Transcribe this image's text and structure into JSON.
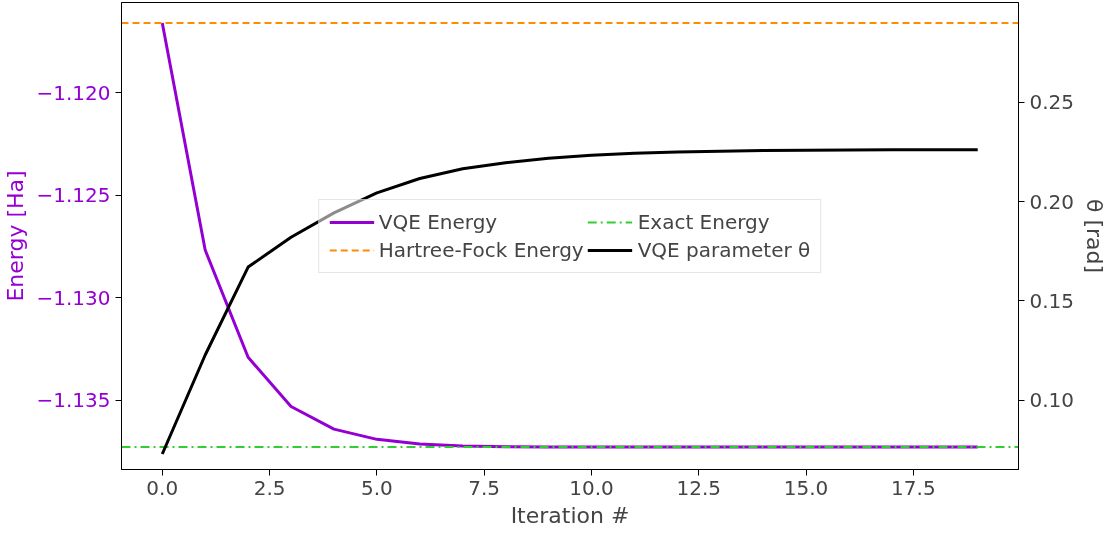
{
  "chart_data": {
    "type": "line",
    "xlabel": "Iteration #",
    "ylabel": "Energy [Ha]",
    "y2label": "θ [rad]",
    "x": [
      0,
      1,
      2,
      3,
      4,
      5,
      6,
      7,
      8,
      9,
      10,
      11,
      12,
      13,
      14,
      15,
      16,
      17,
      18,
      19
    ],
    "series": [
      {
        "name": "VQE Energy",
        "color": "#9400d3",
        "values": [
          -1.1166,
          -1.12767,
          -1.1329,
          -1.1353,
          -1.1364,
          -1.1369,
          -1.13713,
          -1.13722,
          -1.13726,
          -1.13727,
          -1.13727,
          -1.13727,
          -1.13727,
          -1.13727,
          -1.13727,
          -1.13727,
          -1.13727,
          -1.13727,
          -1.13727,
          -1.13727
        ]
      },
      {
        "name": "VQE parameter θ",
        "color": "#000000",
        "axis": "y2",
        "values": [
          0.0728,
          0.1227,
          0.167,
          0.182,
          0.1943,
          0.2044,
          0.2116,
          0.2165,
          0.2196,
          0.2218,
          0.2233,
          0.2243,
          0.225,
          0.2254,
          0.2257,
          0.2259,
          0.226,
          0.2261,
          0.2261,
          0.2261
        ]
      }
    ],
    "ref_lines": [
      {
        "axis": "y",
        "value": -1.1166,
        "label": "Hartree-Fock Energy",
        "color": "#ff8c00",
        "line_style": "dashed"
      },
      {
        "axis": "y",
        "value": -1.13727,
        "label": "Exact Energy",
        "color": "#32cd32",
        "line_style": "dashdot"
      }
    ],
    "xlim": [
      -0.95,
      19.95
    ],
    "ylim": [
      -1.13837,
      -1.1156
    ],
    "y2lim": [
      0.065,
      0.3003
    ],
    "xticks": [
      {
        "value": 0,
        "label": "0.0"
      },
      {
        "value": 2.5,
        "label": "2.5"
      },
      {
        "value": 5,
        "label": "5.0"
      },
      {
        "value": 7.5,
        "label": "7.5"
      },
      {
        "value": 10,
        "label": "10.0"
      },
      {
        "value": 12.5,
        "label": "12.5"
      },
      {
        "value": 15,
        "label": "15.0"
      },
      {
        "value": 17.5,
        "label": "17.5"
      }
    ],
    "yticks": [
      {
        "value": -1.135,
        "label": "−1.135"
      },
      {
        "value": -1.13,
        "label": "−1.130"
      },
      {
        "value": -1.125,
        "label": "−1.125"
      },
      {
        "value": -1.12,
        "label": "−1.120"
      }
    ],
    "y2ticks": [
      {
        "value": 0.1,
        "label": "0.10"
      },
      {
        "value": 0.15,
        "label": "0.15"
      },
      {
        "value": 0.2,
        "label": "0.20"
      },
      {
        "value": 0.25,
        "label": "0.25"
      }
    ],
    "legend": "center",
    "grid": false,
    "marker": "none",
    "line_style": "solid"
  }
}
